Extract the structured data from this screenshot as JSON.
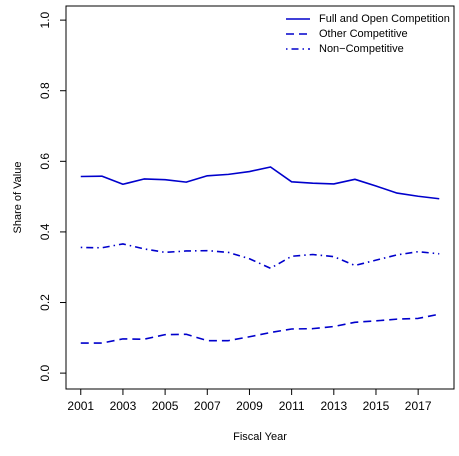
{
  "chart_data": {
    "type": "line",
    "title": "",
    "xlabel": "Fiscal Year",
    "ylabel": "Share of Value",
    "x": [
      2001,
      2002,
      2003,
      2004,
      2005,
      2006,
      2007,
      2008,
      2009,
      2010,
      2011,
      2012,
      2013,
      2014,
      2015,
      2016,
      2017,
      2018
    ],
    "xlim": [
      2001,
      2018
    ],
    "ylim": [
      0.0,
      1.0
    ],
    "x_ticks": [
      2001,
      2003,
      2005,
      2007,
      2009,
      2011,
      2013,
      2015,
      2017
    ],
    "x_tick_labels": [
      "2001",
      "2003",
      "2005",
      "2007",
      "2009",
      "2011",
      "2013",
      "2015",
      "2017"
    ],
    "y_ticks": [
      0.0,
      0.2,
      0.4,
      0.6,
      0.8,
      1.0
    ],
    "y_tick_labels": [
      "0.0",
      "0.2",
      "0.4",
      "0.6",
      "0.8",
      "1.0"
    ],
    "grid": false,
    "legend_position": "top-right",
    "line_color": "#0000cc",
    "series": [
      {
        "name": "Full and Open Competition",
        "style": "solid",
        "values": [
          0.557,
          0.558,
          0.535,
          0.55,
          0.548,
          0.541,
          0.559,
          0.563,
          0.571,
          0.584,
          0.542,
          0.538,
          0.536,
          0.549,
          0.53,
          0.51,
          0.501,
          0.494
        ]
      },
      {
        "name": "Other Competitive",
        "style": "dashed",
        "values": [
          0.085,
          0.085,
          0.097,
          0.096,
          0.109,
          0.11,
          0.092,
          0.092,
          0.103,
          0.115,
          0.125,
          0.126,
          0.132,
          0.144,
          0.148,
          0.153,
          0.155,
          0.167
        ]
      },
      {
        "name": "Non−Competitive",
        "style": "dotdash",
        "values": [
          0.356,
          0.355,
          0.366,
          0.352,
          0.342,
          0.346,
          0.347,
          0.342,
          0.324,
          0.297,
          0.331,
          0.336,
          0.33,
          0.305,
          0.32,
          0.335,
          0.344,
          0.338
        ]
      }
    ]
  }
}
